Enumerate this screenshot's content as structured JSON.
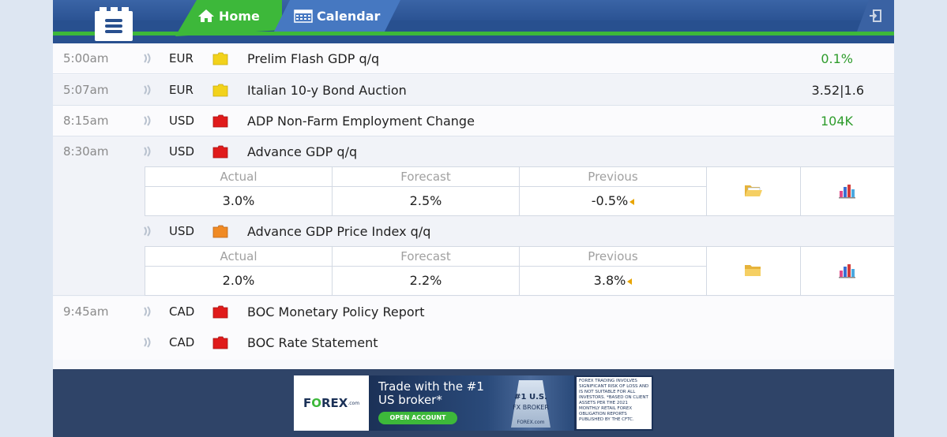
{
  "header": {
    "tabs": [
      {
        "label": "Home",
        "icon": "home-icon",
        "active": true
      },
      {
        "label": "Calendar",
        "icon": "calendar-icon",
        "active": false
      }
    ],
    "accent_green": "#3db83a",
    "header_blue": "#28508f"
  },
  "events": [
    {
      "time": "5:00am",
      "currency": "EUR",
      "impact": "medium",
      "title": "Prelim Flash GDP q/q",
      "value": "0.1%",
      "value_color": "green"
    },
    {
      "time": "5:07am",
      "currency": "EUR",
      "impact": "medium",
      "title": "Italian 10-y Bond Auction",
      "value": "3.52|1.6",
      "value_color": "neutral"
    },
    {
      "time": "8:15am",
      "currency": "USD",
      "impact": "high",
      "title": "ADP Non-Farm Employment Change",
      "value": "104K",
      "value_color": "green"
    },
    {
      "time": "8:30am",
      "currency": "USD",
      "impact": "high",
      "title": "Advance GDP q/q",
      "value": "",
      "detail": {
        "actual_label": "Actual",
        "forecast_label": "Forecast",
        "previous_label": "Previous",
        "actual": "3.0%",
        "forecast": "2.5%",
        "previous": "-0.5%"
      }
    },
    {
      "time": "",
      "currency": "USD",
      "impact": "medium-high",
      "title": "Advance GDP Price Index q/q",
      "value": "",
      "detail": {
        "actual_label": "Actual",
        "forecast_label": "Forecast",
        "previous_label": "Previous",
        "actual": "2.0%",
        "forecast": "2.2%",
        "previous": "3.8%"
      }
    },
    {
      "time": "9:45am",
      "currency": "CAD",
      "impact": "high",
      "title": "BOC Monetary Policy Report",
      "value": ""
    },
    {
      "time": "",
      "currency": "CAD",
      "impact": "high",
      "title": "BOC Rate Statement",
      "value": ""
    }
  ],
  "ad": {
    "brand_main": "F",
    "brand_o": "O",
    "brand_rest": "REX",
    "brand_suffix": ".com",
    "headline": "Trade with the #1 US broker*",
    "cta": "OPEN ACCOUNT",
    "badge_line1": "#1 U.S.",
    "badge_line2": "FX BROKER",
    "badge_line3": "FOREX.com",
    "disclaimer": "Forex trading involves significant risk of loss and is not suitable for all investors. *Based on client assets per the 2021 monthly retail forex obligation reports published by the CFTC."
  }
}
